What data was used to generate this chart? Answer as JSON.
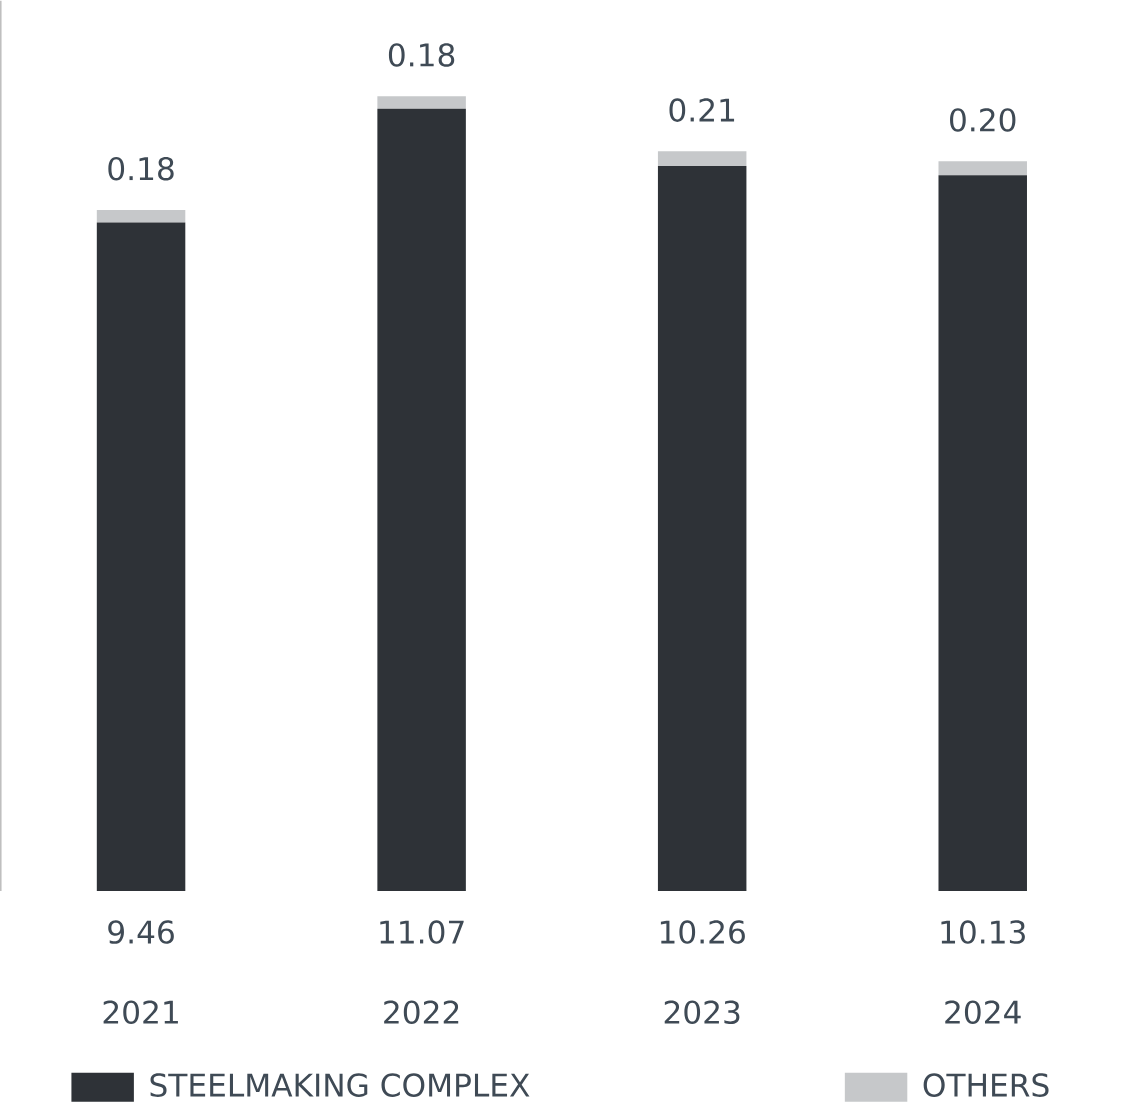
{
  "chart_data": {
    "type": "bar",
    "stacked": true,
    "categories": [
      "2021",
      "2022",
      "2023",
      "2024"
    ],
    "series": [
      {
        "name": "STEELMAKING COMPLEX",
        "color": "#2e3237",
        "values": [
          9.46,
          11.07,
          10.26,
          10.13
        ],
        "value_labels": [
          "9.46",
          "11.07",
          "10.26",
          "10.13"
        ]
      },
      {
        "name": "OTHERS",
        "color": "#c6c8ca",
        "values": [
          0.18,
          0.18,
          0.21,
          0.2
        ],
        "value_labels": [
          "0.18",
          "0.18",
          "0.21",
          "0.20"
        ]
      }
    ],
    "legend": "bottom"
  }
}
